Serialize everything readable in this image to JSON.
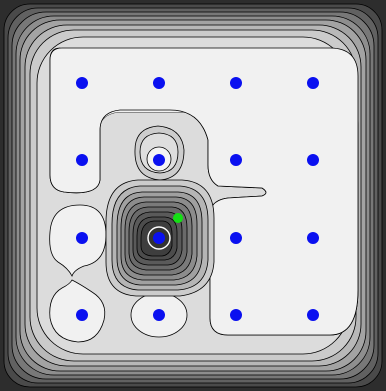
{
  "scene": {
    "title": "",
    "colors": {
      "frame": "#2a2a2a",
      "plateau": "#f0f0f0",
      "contour_line": "#000000",
      "pit": "#3a3a3a",
      "node_blue": "#0a10f0",
      "agent_green": "#14e014"
    },
    "grid": {
      "rows": 4,
      "cols": 4
    },
    "nodes": [
      {
        "row": 0,
        "col": 0
      },
      {
        "row": 0,
        "col": 1
      },
      {
        "row": 0,
        "col": 2
      },
      {
        "row": 0,
        "col": 3
      },
      {
        "row": 1,
        "col": 0
      },
      {
        "row": 1,
        "col": 1,
        "highlight": "ring"
      },
      {
        "row": 1,
        "col": 2
      },
      {
        "row": 1,
        "col": 3
      },
      {
        "row": 2,
        "col": 0
      },
      {
        "row": 2,
        "col": 1,
        "highlight": "pit"
      },
      {
        "row": 2,
        "col": 2
      },
      {
        "row": 2,
        "col": 3
      },
      {
        "row": 3,
        "col": 0
      },
      {
        "row": 3,
        "col": 1
      },
      {
        "row": 3,
        "col": 2
      },
      {
        "row": 3,
        "col": 3
      }
    ],
    "agent": {
      "near_row": 2,
      "near_col": 1,
      "icon": "agent-dot"
    }
  }
}
